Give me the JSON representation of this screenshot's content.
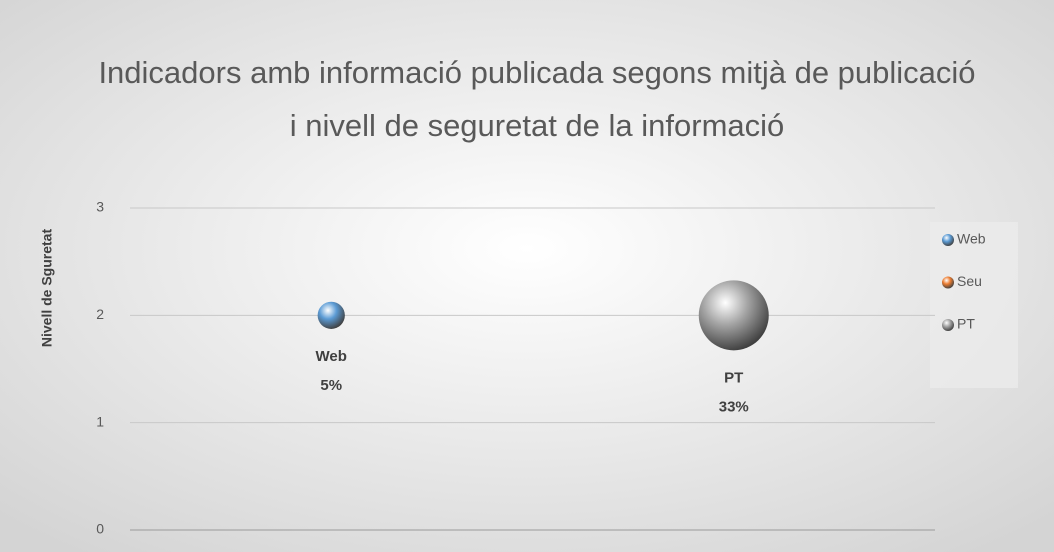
{
  "chart_data": {
    "type": "bubble",
    "title": "Indicadors amb informació publicada segons mitjà de publicació i nivell de seguretat de la informació",
    "y_label": "Nivell de Sguretat",
    "xlim": [
      0,
      4
    ],
    "ylim": [
      0,
      3
    ],
    "yticks": [
      0,
      1,
      2,
      3
    ],
    "grid": true,
    "legend": "right",
    "series": [
      {
        "name": "Web",
        "color": "#5b9bd5",
        "x": [
          1
        ],
        "values": [
          2
        ],
        "sizes": [
          5
        ],
        "value_labels": [
          "5%"
        ]
      },
      {
        "name": "Seu",
        "color": "#ed7d31",
        "x": [],
        "values": [],
        "sizes": [],
        "value_labels": []
      },
      {
        "name": "PT",
        "color": "#a5a5a5",
        "x": [
          3
        ],
        "values": [
          2
        ],
        "sizes": [
          33
        ],
        "value_labels": [
          "33%"
        ]
      }
    ]
  }
}
